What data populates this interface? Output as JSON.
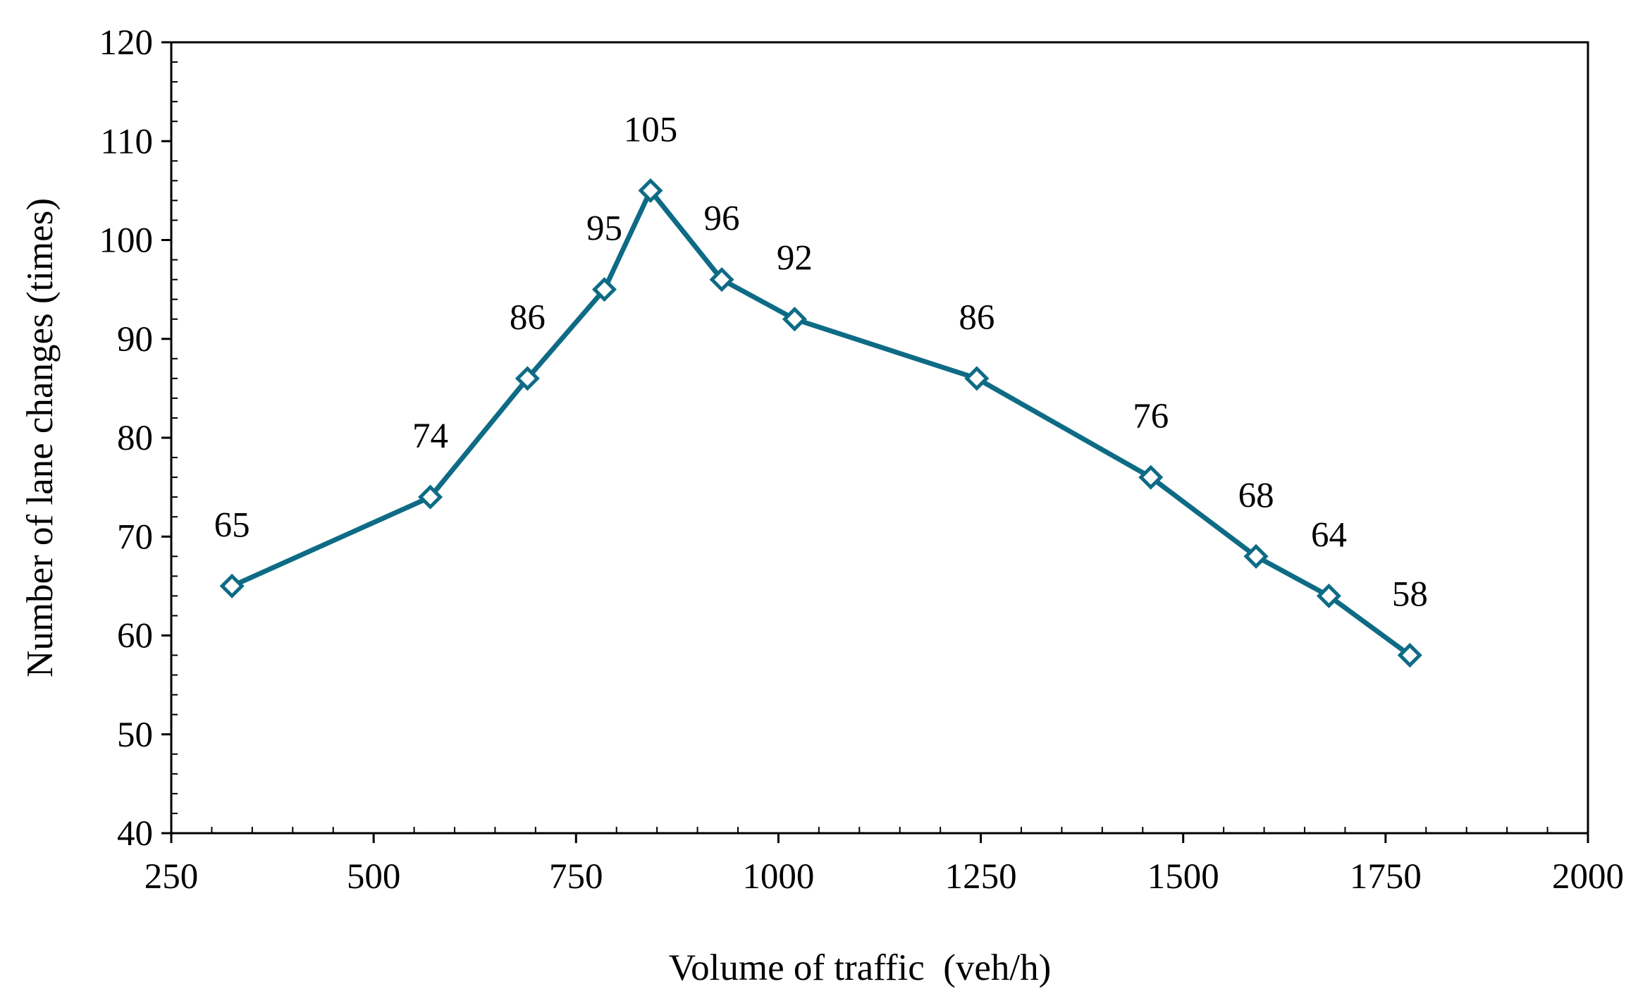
{
  "chart_data": {
    "type": "line",
    "title": "",
    "xlabel": "Volume of traffic  (veh/h)",
    "ylabel": "Number of lane changes (times)",
    "xlim": [
      250,
      2000
    ],
    "ylim": [
      40,
      120
    ],
    "xticks": [
      250,
      500,
      750,
      1000,
      1250,
      1500,
      1750,
      2000
    ],
    "yticks": [
      40,
      50,
      60,
      70,
      80,
      90,
      100,
      110,
      120
    ],
    "x_minor_step": 50,
    "y_minor_step": 2,
    "grid": false,
    "legend": "none",
    "marker": "diamond-open",
    "series": [
      {
        "name": "Number of lane changes",
        "color": "#0e6b85",
        "x": [
          325,
          570,
          690,
          785,
          842,
          930,
          1020,
          1245,
          1460,
          1590,
          1680,
          1780
        ],
        "values": [
          65,
          74,
          86,
          95,
          105,
          96,
          92,
          86,
          76,
          68,
          64,
          58
        ],
        "labels": [
          "65",
          "74",
          "86",
          "95",
          "105",
          "96",
          "92",
          "86",
          "76",
          "68",
          "64",
          "58"
        ]
      }
    ]
  }
}
